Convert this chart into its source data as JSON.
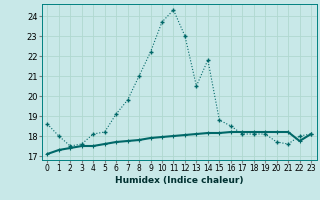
{
  "xlabel": "Humidex (Indice chaleur)",
  "background_color": "#c8e8e8",
  "grid_color": "#b0d8d0",
  "line_color": "#006868",
  "xlim": [
    -0.5,
    23.5
  ],
  "ylim": [
    16.8,
    24.6
  ],
  "yticks": [
    17,
    18,
    19,
    20,
    21,
    22,
    23,
    24
  ],
  "xticks": [
    0,
    1,
    2,
    3,
    4,
    5,
    6,
    7,
    8,
    9,
    10,
    11,
    12,
    13,
    14,
    15,
    16,
    17,
    18,
    19,
    20,
    21,
    22,
    23
  ],
  "line1_x": [
    0,
    1,
    2,
    3,
    4,
    5,
    6,
    7,
    8,
    9,
    10,
    11,
    12,
    13,
    14,
    15,
    16,
    17,
    18,
    19,
    20,
    21,
    22,
    23
  ],
  "line1_y": [
    18.6,
    18.0,
    17.5,
    17.6,
    18.1,
    18.2,
    19.1,
    19.8,
    21.0,
    22.2,
    23.7,
    24.3,
    23.0,
    20.5,
    21.8,
    18.8,
    18.5,
    18.1,
    18.1,
    18.1,
    17.7,
    17.6,
    18.0,
    18.1
  ],
  "line2_x": [
    0,
    1,
    2,
    3,
    4,
    5,
    6,
    7,
    8,
    9,
    10,
    11,
    12,
    13,
    14,
    15,
    16,
    17,
    18,
    19,
    20,
    21,
    22,
    23
  ],
  "line2_y": [
    17.1,
    17.3,
    17.4,
    17.5,
    17.5,
    17.6,
    17.7,
    17.75,
    17.8,
    17.9,
    17.95,
    18.0,
    18.05,
    18.1,
    18.15,
    18.15,
    18.2,
    18.2,
    18.2,
    18.2,
    18.2,
    18.2,
    17.75,
    18.1
  ]
}
